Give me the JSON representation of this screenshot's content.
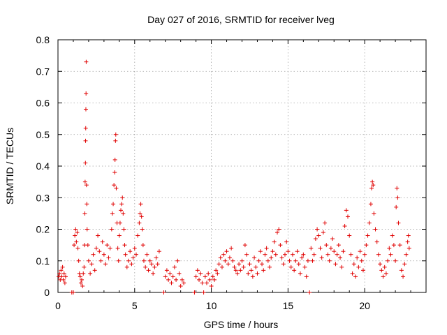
{
  "chart_data": {
    "type": "scatter",
    "title": "Day 027 of 2016, SRMTID for receiver lveg",
    "xlabel": "GPS time / hours",
    "ylabel": "SRMTID / TECUs",
    "xlim": [
      0,
      24
    ],
    "ylim": [
      0,
      0.8
    ],
    "xticks": [
      0,
      5,
      10,
      15,
      20
    ],
    "yticks": [
      0,
      0.1,
      0.2,
      0.3,
      0.4,
      0.5,
      0.6,
      0.7,
      0.8
    ],
    "xtick_labels": [
      "0",
      "5",
      "10",
      "15",
      "20"
    ],
    "ytick_labels": [
      "0",
      "0.1",
      "0.2",
      "0.3",
      "0.4",
      "0.5",
      "0.6",
      "0.7",
      "0.8"
    ],
    "grid": true,
    "marker": "+",
    "color": "#e00000",
    "series": [
      {
        "name": "SRMTID",
        "points": [
          [
            0.05,
            0.05
          ],
          [
            0.1,
            0.06
          ],
          [
            0.15,
            0.04
          ],
          [
            0.2,
            0.07
          ],
          [
            0.25,
            0.05
          ],
          [
            0.3,
            0.08
          ],
          [
            0.35,
            0.04
          ],
          [
            0.4,
            0.06
          ],
          [
            0.45,
            0.03
          ],
          [
            0.5,
            0.05
          ],
          [
            0.9,
            0.0
          ],
          [
            1.0,
            0.0
          ],
          [
            1.05,
            0.15
          ],
          [
            1.1,
            0.18
          ],
          [
            1.15,
            0.2
          ],
          [
            1.2,
            0.16
          ],
          [
            1.25,
            0.19
          ],
          [
            1.3,
            0.14
          ],
          [
            1.35,
            0.1
          ],
          [
            1.4,
            0.06
          ],
          [
            1.45,
            0.05
          ],
          [
            1.5,
            0.03
          ],
          [
            1.55,
            0.04
          ],
          [
            1.6,
            0.02
          ],
          [
            1.65,
            0.06
          ],
          [
            1.7,
            0.08
          ],
          [
            1.73,
            0.15
          ],
          [
            1.75,
            0.25
          ],
          [
            1.77,
            0.35
          ],
          [
            1.79,
            0.41
          ],
          [
            1.8,
            0.48
          ],
          [
            1.81,
            0.52
          ],
          [
            1.82,
            0.58
          ],
          [
            1.83,
            0.63
          ],
          [
            1.84,
            0.73
          ],
          [
            1.86,
            0.34
          ],
          [
            1.88,
            0.28
          ],
          [
            1.9,
            0.2
          ],
          [
            1.95,
            0.15
          ],
          [
            2.0,
            0.1
          ],
          [
            2.1,
            0.06
          ],
          [
            2.2,
            0.09
          ],
          [
            2.3,
            0.12
          ],
          [
            2.4,
            0.07
          ],
          [
            2.5,
            0.14
          ],
          [
            2.6,
            0.18
          ],
          [
            2.7,
            0.13
          ],
          [
            2.8,
            0.1
          ],
          [
            2.9,
            0.16
          ],
          [
            3.0,
            0.12
          ],
          [
            3.1,
            0.09
          ],
          [
            3.2,
            0.15
          ],
          [
            3.3,
            0.11
          ],
          [
            3.4,
            0.14
          ],
          [
            3.5,
            0.2
          ],
          [
            3.55,
            0.25
          ],
          [
            3.6,
            0.28
          ],
          [
            3.65,
            0.34
          ],
          [
            3.7,
            0.38
          ],
          [
            3.72,
            0.42
          ],
          [
            3.75,
            0.48
          ],
          [
            3.77,
            0.5
          ],
          [
            3.8,
            0.33
          ],
          [
            3.85,
            0.22
          ],
          [
            3.9,
            0.14
          ],
          [
            3.95,
            0.1
          ],
          [
            4.0,
            0.18
          ],
          [
            4.05,
            0.22
          ],
          [
            4.1,
            0.26
          ],
          [
            4.15,
            0.28
          ],
          [
            4.2,
            0.3
          ],
          [
            4.25,
            0.25
          ],
          [
            4.3,
            0.2
          ],
          [
            4.35,
            0.15
          ],
          [
            4.4,
            0.12
          ],
          [
            4.5,
            0.08
          ],
          [
            4.6,
            0.1
          ],
          [
            4.7,
            0.13
          ],
          [
            4.8,
            0.09
          ],
          [
            4.9,
            0.11
          ],
          [
            5.0,
            0.14
          ],
          [
            5.1,
            0.12
          ],
          [
            5.2,
            0.18
          ],
          [
            5.3,
            0.22
          ],
          [
            5.35,
            0.25
          ],
          [
            5.4,
            0.28
          ],
          [
            5.45,
            0.24
          ],
          [
            5.5,
            0.2
          ],
          [
            5.55,
            0.15
          ],
          [
            5.6,
            0.1
          ],
          [
            5.7,
            0.08
          ],
          [
            5.8,
            0.12
          ],
          [
            5.9,
            0.07
          ],
          [
            6.0,
            0.1
          ],
          [
            6.1,
            0.09
          ],
          [
            6.2,
            0.06
          ],
          [
            6.3,
            0.08
          ],
          [
            6.4,
            0.11
          ],
          [
            6.5,
            0.09
          ],
          [
            6.6,
            0.13
          ],
          [
            6.9,
            0.0
          ],
          [
            7.0,
            0.05
          ],
          [
            7.1,
            0.07
          ],
          [
            7.2,
            0.04
          ],
          [
            7.3,
            0.06
          ],
          [
            7.4,
            0.03
          ],
          [
            7.5,
            0.05
          ],
          [
            7.6,
            0.08
          ],
          [
            7.7,
            0.04
          ],
          [
            7.8,
            0.1
          ],
          [
            7.9,
            0.06
          ],
          [
            8.0,
            0.02
          ],
          [
            8.1,
            0.04
          ],
          [
            8.2,
            0.03
          ],
          [
            8.9,
            0.0
          ],
          [
            9.0,
            0.05
          ],
          [
            9.1,
            0.07
          ],
          [
            9.2,
            0.04
          ],
          [
            9.3,
            0.06
          ],
          [
            9.4,
            0.03
          ],
          [
            9.5,
            0.0
          ],
          [
            9.6,
            0.05
          ],
          [
            9.7,
            0.03
          ],
          [
            9.8,
            0.06
          ],
          [
            9.9,
            0.04
          ],
          [
            10.0,
            0.02
          ],
          [
            10.1,
            0.05
          ],
          [
            10.2,
            0.04
          ],
          [
            10.3,
            0.07
          ],
          [
            10.4,
            0.06
          ],
          [
            10.5,
            0.09
          ],
          [
            10.6,
            0.11
          ],
          [
            10.7,
            0.08
          ],
          [
            10.8,
            0.12
          ],
          [
            10.9,
            0.1
          ],
          [
            11.0,
            0.13
          ],
          [
            11.1,
            0.09
          ],
          [
            11.2,
            0.11
          ],
          [
            11.3,
            0.14
          ],
          [
            11.4,
            0.1
          ],
          [
            11.5,
            0.08
          ],
          [
            11.6,
            0.07
          ],
          [
            11.7,
            0.06
          ],
          [
            11.8,
            0.09
          ],
          [
            11.9,
            0.07
          ],
          [
            12.0,
            0.1
          ],
          [
            12.1,
            0.08
          ],
          [
            12.2,
            0.15
          ],
          [
            12.3,
            0.12
          ],
          [
            12.4,
            0.06
          ],
          [
            12.5,
            0.09
          ],
          [
            12.6,
            0.07
          ],
          [
            12.7,
            0.05
          ],
          [
            12.8,
            0.11
          ],
          [
            12.9,
            0.08
          ],
          [
            13.0,
            0.06
          ],
          [
            13.1,
            0.1
          ],
          [
            13.2,
            0.13
          ],
          [
            13.3,
            0.09
          ],
          [
            13.4,
            0.07
          ],
          [
            13.5,
            0.12
          ],
          [
            13.6,
            0.14
          ],
          [
            13.7,
            0.1
          ],
          [
            13.8,
            0.08
          ],
          [
            13.9,
            0.11
          ],
          [
            14.0,
            0.13
          ],
          [
            14.1,
            0.16
          ],
          [
            14.2,
            0.12
          ],
          [
            14.3,
            0.19
          ],
          [
            14.4,
            0.2
          ],
          [
            14.5,
            0.15
          ],
          [
            14.6,
            0.11
          ],
          [
            14.7,
            0.09
          ],
          [
            14.8,
            0.12
          ],
          [
            14.9,
            0.16
          ],
          [
            15.0,
            0.13
          ],
          [
            15.1,
            0.1
          ],
          [
            15.2,
            0.08
          ],
          [
            15.3,
            0.12
          ],
          [
            15.4,
            0.07
          ],
          [
            15.5,
            0.1
          ],
          [
            15.6,
            0.13
          ],
          [
            15.7,
            0.09
          ],
          [
            15.8,
            0.06
          ],
          [
            15.9,
            0.11
          ],
          [
            16.0,
            0.12
          ],
          [
            16.1,
            0.08
          ],
          [
            16.2,
            0.05
          ],
          [
            16.3,
            0.1
          ],
          [
            16.4,
            0.0
          ],
          [
            16.5,
            0.14
          ],
          [
            16.6,
            0.1
          ],
          [
            16.7,
            0.12
          ],
          [
            16.8,
            0.17
          ],
          [
            16.9,
            0.2
          ],
          [
            17.0,
            0.18
          ],
          [
            17.1,
            0.14
          ],
          [
            17.2,
            0.11
          ],
          [
            17.3,
            0.19
          ],
          [
            17.4,
            0.22
          ],
          [
            17.5,
            0.15
          ],
          [
            17.6,
            0.12
          ],
          [
            17.7,
            0.1
          ],
          [
            17.8,
            0.14
          ],
          [
            17.9,
            0.17
          ],
          [
            18.0,
            0.13
          ],
          [
            18.1,
            0.09
          ],
          [
            18.2,
            0.12
          ],
          [
            18.3,
            0.15
          ],
          [
            18.4,
            0.11
          ],
          [
            18.5,
            0.08
          ],
          [
            18.6,
            0.13
          ],
          [
            18.7,
            0.21
          ],
          [
            18.8,
            0.26
          ],
          [
            18.9,
            0.24
          ],
          [
            19.0,
            0.18
          ],
          [
            19.1,
            0.12
          ],
          [
            19.2,
            0.06
          ],
          [
            19.3,
            0.09
          ],
          [
            19.4,
            0.05
          ],
          [
            19.5,
            0.11
          ],
          [
            19.6,
            0.08
          ],
          [
            19.7,
            0.13
          ],
          [
            19.8,
            0.1
          ],
          [
            19.9,
            0.07
          ],
          [
            20.0,
            0.12
          ],
          [
            20.1,
            0.15
          ],
          [
            20.2,
            0.18
          ],
          [
            20.3,
            0.22
          ],
          [
            20.4,
            0.28
          ],
          [
            20.45,
            0.33
          ],
          [
            20.5,
            0.35
          ],
          [
            20.55,
            0.34
          ],
          [
            20.6,
            0.25
          ],
          [
            20.7,
            0.2
          ],
          [
            20.8,
            0.16
          ],
          [
            20.9,
            0.12
          ],
          [
            21.0,
            0.09
          ],
          [
            21.1,
            0.07
          ],
          [
            21.2,
            0.05
          ],
          [
            21.3,
            0.08
          ],
          [
            21.4,
            0.06
          ],
          [
            21.5,
            0.1
          ],
          [
            21.6,
            0.14
          ],
          [
            21.7,
            0.12
          ],
          [
            21.8,
            0.18
          ],
          [
            21.9,
            0.15
          ],
          [
            22.0,
            0.1
          ],
          [
            22.05,
            0.27
          ],
          [
            22.1,
            0.33
          ],
          [
            22.15,
            0.3
          ],
          [
            22.2,
            0.22
          ],
          [
            22.3,
            0.15
          ],
          [
            22.4,
            0.07
          ],
          [
            22.5,
            0.05
          ],
          [
            22.6,
            0.09
          ],
          [
            22.7,
            0.12
          ],
          [
            22.8,
            0.16
          ],
          [
            22.85,
            0.18
          ],
          [
            22.9,
            0.14
          ]
        ]
      }
    ]
  }
}
